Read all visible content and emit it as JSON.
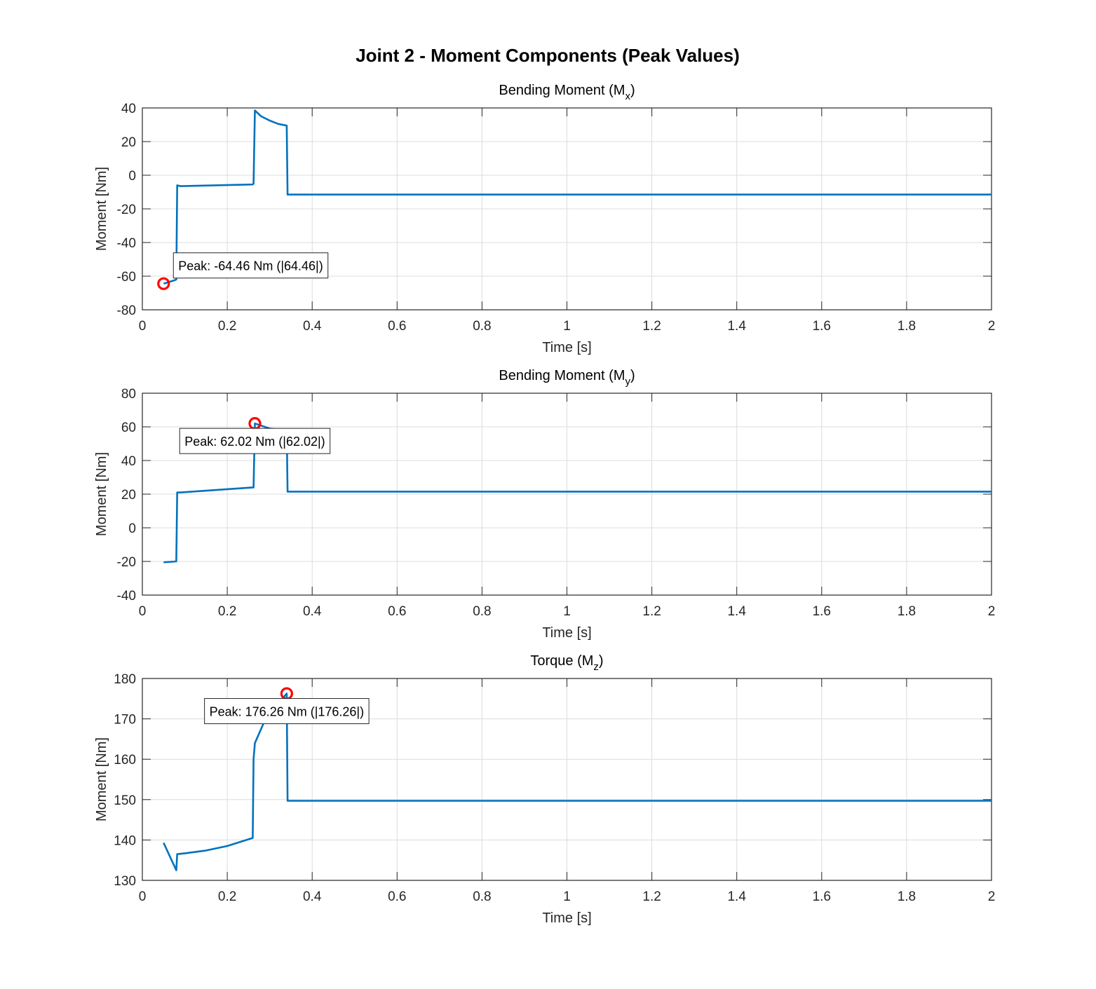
{
  "figure_title": "Joint 2 - Moment Components (Peak Values)",
  "chart_data": [
    {
      "type": "line",
      "title": "Bending Moment (M",
      "title_sub": "x",
      "title_end": ")",
      "xlabel": "Time [s]",
      "ylabel": "Moment [Nm]",
      "xlim": [
        0,
        2
      ],
      "ylim": [
        -80,
        40
      ],
      "xticks": [
        "0",
        "0.2",
        "0.4",
        "0.6",
        "0.8",
        "1",
        "1.2",
        "1.4",
        "1.6",
        "1.8",
        "2"
      ],
      "yticks": [
        "-80",
        "-60",
        "-40",
        "-20",
        "0",
        "20",
        "40"
      ],
      "grid": true,
      "line_color": "#0072BD",
      "x": [
        0.05,
        0.075,
        0.08,
        0.082,
        0.09,
        0.26,
        0.262,
        0.265,
        0.28,
        0.3,
        0.32,
        0.34,
        0.342,
        2
      ],
      "y": [
        -64.46,
        -62.5,
        -62,
        -6,
        -6.5,
        -5.5,
        -5,
        38.5,
        35,
        32.5,
        30.5,
        29.5,
        -11.5,
        -11.5
      ],
      "peak": {
        "x": 0.05,
        "y": -64.46,
        "label": "Peak: -64.46 Nm (|64.46|)"
      }
    },
    {
      "type": "line",
      "title": "Bending Moment (M",
      "title_sub": "y",
      "title_end": ")",
      "xlabel": "Time [s]",
      "ylabel": "Moment [Nm]",
      "xlim": [
        0,
        2
      ],
      "ylim": [
        -40,
        80
      ],
      "xticks": [
        "0",
        "0.2",
        "0.4",
        "0.6",
        "0.8",
        "1",
        "1.2",
        "1.4",
        "1.6",
        "1.8",
        "2"
      ],
      "yticks": [
        "-40",
        "-20",
        "0",
        "20",
        "40",
        "60",
        "80"
      ],
      "grid": true,
      "line_color": "#0072BD",
      "x": [
        0.05,
        0.08,
        0.082,
        0.09,
        0.26,
        0.262,
        0.265,
        0.3,
        0.34,
        0.342,
        2
      ],
      "y": [
        -20.5,
        -20,
        21,
        21,
        24,
        24,
        62.02,
        59,
        58,
        21.5,
        21.5
      ],
      "peak": {
        "x": 0.265,
        "y": 62.02,
        "label": "Peak: 62.02 Nm (|62.02|)"
      }
    },
    {
      "type": "line",
      "title": "Torque (M",
      "title_sub": "z",
      "title_end": ")",
      "xlabel": "Time [s]",
      "ylabel": "Moment [Nm]",
      "xlim": [
        0,
        2
      ],
      "ylim": [
        130,
        180
      ],
      "xticks": [
        "0",
        "0.2",
        "0.4",
        "0.6",
        "0.8",
        "1",
        "1.2",
        "1.4",
        "1.6",
        "1.8",
        "2"
      ],
      "yticks": [
        "130",
        "140",
        "150",
        "160",
        "170",
        "180"
      ],
      "grid": true,
      "line_color": "#0072BD",
      "x": [
        0.05,
        0.08,
        0.082,
        0.1,
        0.15,
        0.2,
        0.26,
        0.262,
        0.265,
        0.29,
        0.34,
        0.342,
        2
      ],
      "y": [
        139.3,
        132.5,
        136.5,
        136.7,
        137.4,
        138.5,
        140.5,
        160,
        164,
        170,
        176.26,
        149.7,
        149.7
      ],
      "peak": {
        "x": 0.34,
        "y": 176.26,
        "label": "Peak: 176.26 Nm (|176.26|)"
      }
    }
  ]
}
